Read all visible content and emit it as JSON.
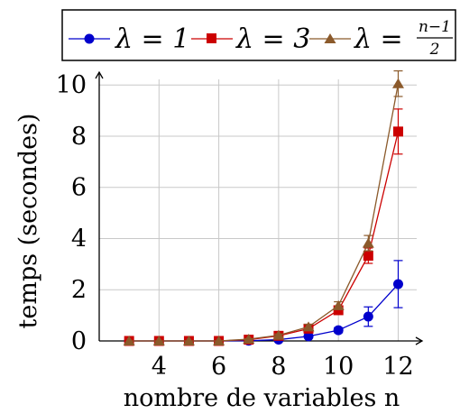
{
  "chart_data": {
    "type": "line",
    "xlabel": "nombre de variables n",
    "ylabel": "temps (secondes)",
    "x": [
      3,
      4,
      5,
      6,
      7,
      8,
      9,
      10,
      11,
      12
    ],
    "xlim": [
      2,
      12.8
    ],
    "ylim": [
      0,
      10.5
    ],
    "xticks": [
      "4",
      "6",
      "8",
      "10",
      "12"
    ],
    "yticks": [
      "0",
      "2",
      "4",
      "6",
      "8",
      "10"
    ],
    "grid": true,
    "legend_position": "top",
    "series": [
      {
        "name": "λ = 1",
        "color": "#0000cc",
        "marker": "circle",
        "values": [
          0,
          0,
          0,
          0,
          0.01,
          0.05,
          0.18,
          0.42,
          0.95,
          2.22
        ],
        "errors": [
          0,
          0,
          0,
          0,
          0,
          0.02,
          0.06,
          0.1,
          0.38,
          0.92
        ]
      },
      {
        "name": "λ = 3",
        "color": "#cc0000",
        "marker": "square",
        "values": [
          0,
          0,
          0,
          0,
          0.05,
          0.2,
          0.48,
          1.2,
          3.33,
          8.18
        ],
        "errors": [
          0,
          0,
          0,
          0,
          0.02,
          0.05,
          0.1,
          0.15,
          0.3,
          0.88
        ]
      },
      {
        "name": "λ = (n−1)/2",
        "color": "#8b5a2b",
        "marker": "triangle",
        "values": [
          0,
          0,
          0,
          0,
          0.07,
          0.22,
          0.55,
          1.38,
          3.82,
          10.05
        ],
        "errors": [
          0,
          0,
          0,
          0,
          0.02,
          0.05,
          0.1,
          0.15,
          0.3,
          0.5
        ]
      }
    ]
  },
  "legend": {
    "items": [
      {
        "prefix": "λ = 1",
        "color": "#0000cc",
        "marker": "circle"
      },
      {
        "prefix": "λ = 3",
        "color": "#cc0000",
        "marker": "square"
      },
      {
        "prefix": "λ =",
        "color": "#8b5a2b",
        "marker": "triangle",
        "numerator": "n−1",
        "denominator": "2"
      }
    ]
  }
}
